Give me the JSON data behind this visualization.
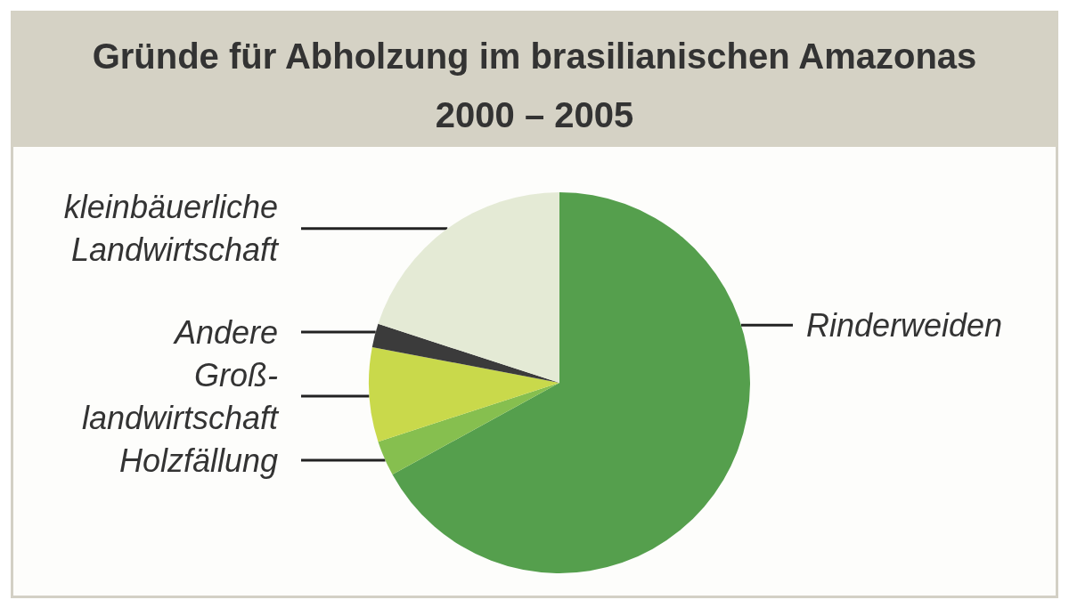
{
  "chart_data": {
    "type": "pie",
    "title": "Gründe für Abholzung im brasilianischen Amazonas",
    "subtitle": "2000 – 2005",
    "categories": [
      "Rinderweiden",
      "Holzfällung",
      "Groß-landwirtschaft",
      "Andere",
      "kleinbäuerliche Landwirtschaft"
    ],
    "values": [
      67,
      3,
      8,
      2,
      20
    ],
    "colors": [
      "#559f4d",
      "#86bf4f",
      "#c9d94b",
      "#3b3b3b",
      "#e4ead5"
    ]
  }
}
